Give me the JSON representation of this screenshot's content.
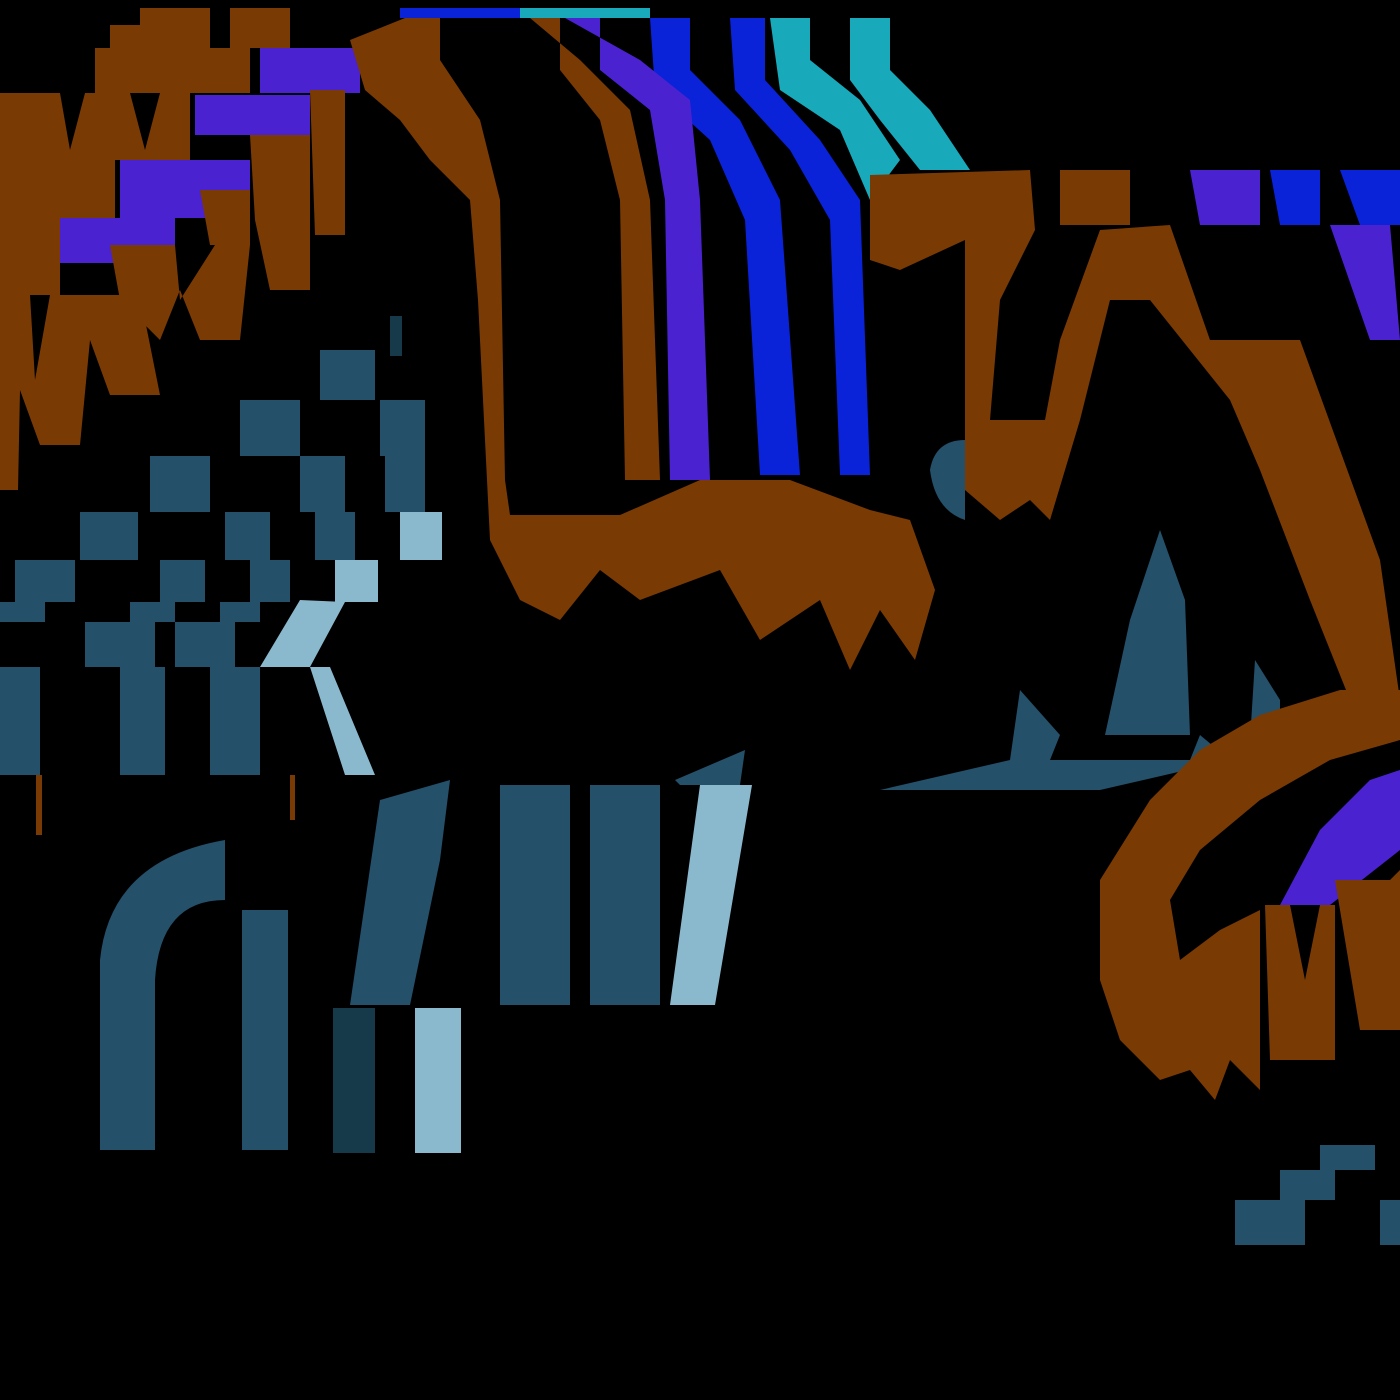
{
  "artwork": {
    "description_free": true,
    "palette": {
      "background": "#000000",
      "brown": "#7a3a04",
      "purple": "#4a22d0",
      "blue": "#0a22d8",
      "cyan": "#18aabb",
      "slate": "#24506a",
      "dark_slate": "#163a4a",
      "light_blue": "#8ab8cc"
    }
  }
}
